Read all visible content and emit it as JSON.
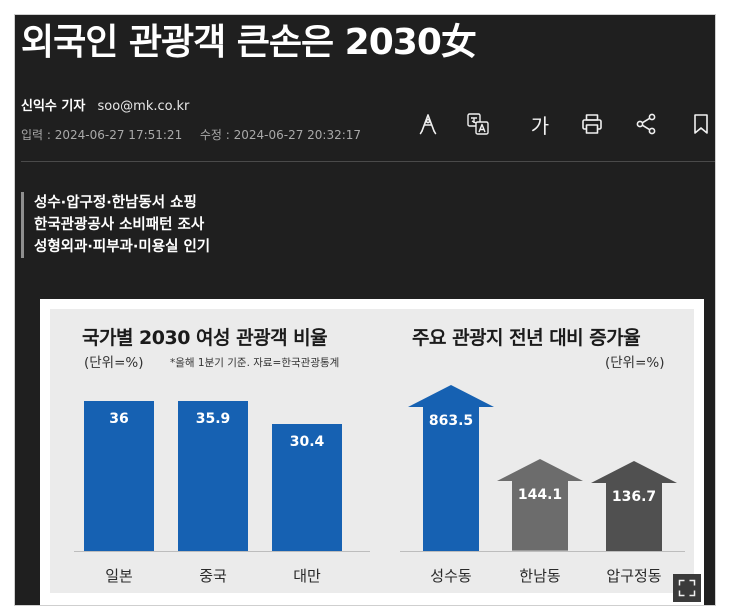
{
  "article": {
    "headline": "외국인 관광객 큰손은 2030女",
    "reporter": "신익수 기자",
    "email": "soo@mk.co.kr",
    "published": "입력 : 2024-06-27 17:51:21",
    "updated": "수정 : 2024-06-27 20:32:17",
    "summary": [
      "성수·압구정·한남동서 쇼핑",
      "한국관광공사 소비패턴 조사",
      "성형외과·피부과·미용실 인기"
    ]
  },
  "toolbar": {
    "icons": [
      "share-style-icon",
      "translate-icon",
      "font-size-icon",
      "print-icon",
      "share-icon",
      "bookmark-icon"
    ],
    "font_size_label": "가"
  },
  "graphic": {
    "left_title": "국가별 2030 여성 관광객 비율",
    "left_unit": "(단위=%)",
    "left_note": "*올해 1분기 기준. 자료=한국관광통계",
    "right_title": "주요 관광지 전년 대비 증가율",
    "right_unit": "(단위=%)",
    "colors": {
      "bar": "#1661b2",
      "gray_arrow": "#6c6c6c",
      "dark_arrow": "#505050"
    }
  },
  "chart_data": [
    {
      "type": "bar",
      "title": "국가별 2030 여성 관광객 비율",
      "unit": "(단위=%)",
      "categories": [
        "일본",
        "중국",
        "대만"
      ],
      "values": [
        36,
        35.9,
        30.4
      ],
      "value_labels": [
        "36",
        "35.9",
        "30.4"
      ]
    },
    {
      "type": "bar",
      "title": "주요 관광지 전년 대비 증가율",
      "unit": "(단위=%)",
      "categories": [
        "성수동",
        "한남동",
        "압구정동"
      ],
      "values": [
        863.5,
        144.1,
        136.7
      ],
      "value_labels": [
        "863.5",
        "144.1",
        "136.7"
      ]
    }
  ]
}
